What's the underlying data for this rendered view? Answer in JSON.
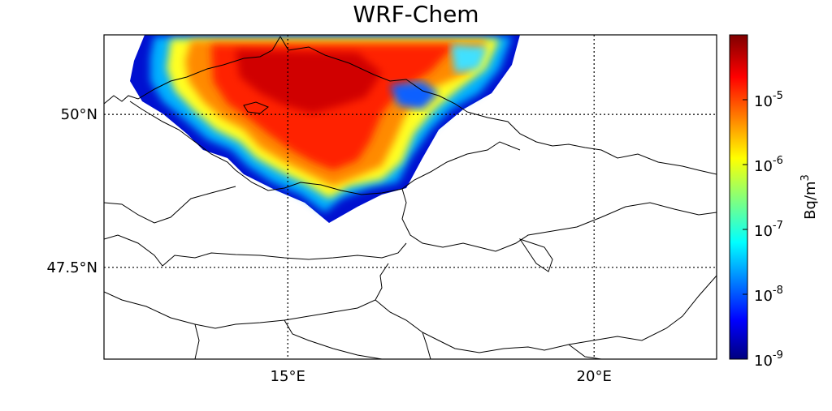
{
  "title": "WRF-Chem",
  "map": {
    "lon_range": [
      12,
      22
    ],
    "lat_range": [
      46,
      51.3
    ],
    "lon_ticks": [
      {
        "value": 15,
        "label": "15°E"
      },
      {
        "value": 20,
        "label": "20°E"
      }
    ],
    "lat_ticks": [
      {
        "value": 50,
        "label": "50°N"
      },
      {
        "value": 47.5,
        "label": "47.5°N"
      }
    ],
    "gridlines": "dotted",
    "background": "#ffffff",
    "borders_color": "#000000"
  },
  "colorbar": {
    "label": "Bq/m",
    "label_superscript": "3",
    "scale": "log",
    "range": [
      1e-09,
      0.0001
    ],
    "colormap": "jet",
    "ticks": [
      {
        "value": 1e-05,
        "base": "10",
        "exp": "-5"
      },
      {
        "value": 1e-06,
        "base": "10",
        "exp": "-6"
      },
      {
        "value": 1e-07,
        "base": "10",
        "exp": "-7"
      },
      {
        "value": 1e-08,
        "base": "10",
        "exp": "-8"
      },
      {
        "value": 1e-09,
        "base": "10",
        "exp": "-9"
      }
    ]
  }
}
